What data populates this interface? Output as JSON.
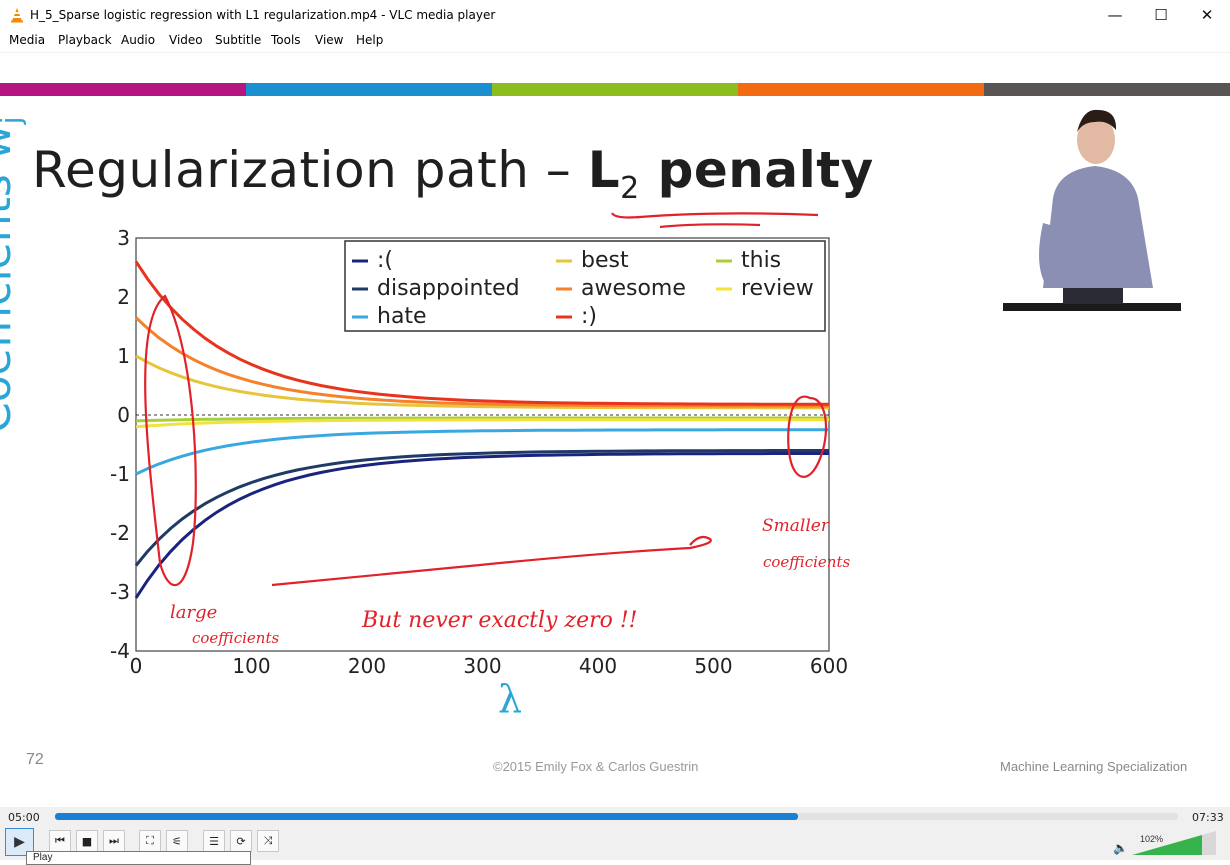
{
  "window": {
    "title": "H_5_Sparse logistic regression with L1 regularization.mp4 - VLC media player",
    "minimize": "—",
    "maximize": "☐",
    "close": "✕"
  },
  "menu": [
    "Media",
    "Playback",
    "Audio",
    "Video",
    "Subtitle",
    "Tools",
    "View",
    "Help"
  ],
  "slide": {
    "title_main": "Regularization path – ",
    "title_bold": "L",
    "title_sub": "2",
    "title_bold2": " penalty",
    "ylabel": "Coefficients ŵ",
    "ylabel_sub": "j",
    "xlabel": "λ",
    "slide_number": "72",
    "copyright": "©2015 Emily Fox & Carlos Guestrin",
    "footer": "Machine Learning Specialization",
    "colors": [
      "#b5157e",
      "#1b8fcf",
      "#8cbd1e",
      "#f26a12",
      "#5a5555"
    ],
    "annotations": {
      "left1": "large",
      "left2": "coefficients",
      "middle": "But never exactly zero !!",
      "right1": "Smaller",
      "right2": "coefficients"
    }
  },
  "chart_data": {
    "type": "line",
    "xlabel": "λ",
    "ylabel": "Coefficients ŵj",
    "xlim": [
      0,
      600
    ],
    "ylim": [
      -4,
      3
    ],
    "xticks": [
      0,
      100,
      200,
      300,
      400,
      500,
      600
    ],
    "yticks": [
      3,
      2,
      1,
      0,
      -1,
      -2,
      -3,
      -4
    ],
    "legend_position": "top",
    "series": [
      {
        "name": ":(",
        "color": "#1a237e",
        "start": -3.1,
        "end": -0.65
      },
      {
        "name": "disappointed",
        "color": "#1f3a66",
        "start": -2.55,
        "end": -0.6
      },
      {
        "name": "hate",
        "color": "#3aa8e0",
        "start": -1.0,
        "end": -0.25
      },
      {
        "name": "best",
        "color": "#e8c43a",
        "start": 1.0,
        "end": 0.12
      },
      {
        "name": "awesome",
        "color": "#f5812a",
        "start": 1.65,
        "end": 0.15
      },
      {
        "name": ":)",
        "color": "#e8341c",
        "start": 2.6,
        "end": 0.18
      },
      {
        "name": "this",
        "color": "#a8cf36",
        "start": -0.1,
        "end": -0.05
      },
      {
        "name": "review",
        "color": "#f1e23c",
        "start": -0.2,
        "end": -0.08
      }
    ]
  },
  "player": {
    "elapsed": "05:00",
    "total": "07:33",
    "progress": 0.662,
    "volume": "102%",
    "tooltip": "Play"
  },
  "icons": {
    "play": "▶",
    "prev": "⏮",
    "stop": "■",
    "next": "⏭",
    "fullscreen": "⛶",
    "extended": "⚟",
    "playlist": "☰",
    "loop": "⟳",
    "shuffle": "⤨",
    "volume": "🔈"
  }
}
